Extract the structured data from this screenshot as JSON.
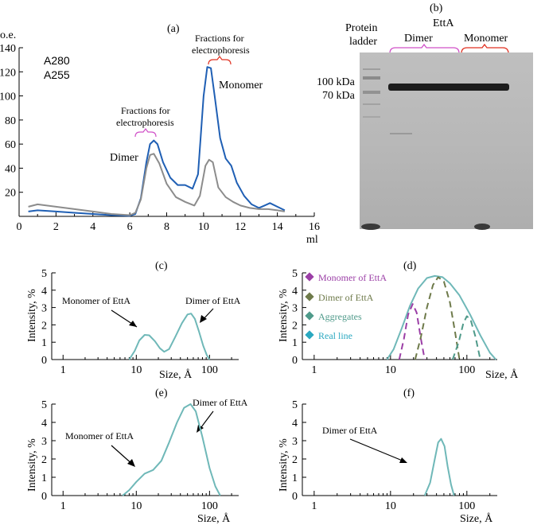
{
  "colors": {
    "a280": "#1f5fb4",
    "a255": "#8c8c8c",
    "dls": "#6fb8b8",
    "monomer": "#9b3fa6",
    "dimer": "#6e7a4a",
    "aggregates": "#4f9a8a",
    "real": "#2aa8c0",
    "bracket_dimer": "#d050c8",
    "bracket_monomer": "#e03020"
  },
  "panel_a": {
    "label": "(a)",
    "yunit": "o.e.",
    "xunit": "ml",
    "ann_dimer": "Dimer",
    "ann_monomer": "Monomer",
    "ann_fractions_left": [
      "Fractions for",
      "electrophoresis"
    ],
    "ann_fractions_right": [
      "Fractions for",
      "electrophoresis"
    ]
  },
  "panel_b": {
    "label": "(b)",
    "protein_ladder": [
      "Protein",
      "ladder"
    ],
    "ettA": "EttA",
    "dimer": "Dimer",
    "monomer": "Monomer",
    "kda_100": "100 kDa",
    "kda_70": "70 kDa"
  },
  "dls": {
    "ylabel": "Intensity, %",
    "xlabel": "Size, Å",
    "panel_c": {
      "label": "(c)",
      "ann_monomer": "Monomer of EttA",
      "ann_dimer": "Dimer of EttA"
    },
    "panel_d": {
      "label": "(d)",
      "legend": [
        "Monomer of EttA",
        "Dimer of EttA",
        "Aggregates",
        "Real line"
      ]
    },
    "panel_e": {
      "label": "(e)",
      "ann_monomer": "Monomer of EttA",
      "ann_dimer": "Dimer of EttA"
    },
    "panel_f": {
      "label": "(f)",
      "ann_dimer": "Dimer of EttA"
    }
  },
  "chart_data": [
    {
      "type": "line",
      "panel": "a",
      "xlabel": "ml",
      "ylabel": "o.e.",
      "xlim": [
        0,
        16
      ],
      "ylim": [
        0,
        140
      ],
      "xticks": [
        0,
        2,
        4,
        6,
        8,
        10,
        12,
        14,
        16
      ],
      "yticks": [
        20,
        40,
        60,
        80,
        100,
        120,
        140
      ],
      "series": [
        {
          "name": "A280",
          "points": [
            [
              0.5,
              4
            ],
            [
              1,
              5
            ],
            [
              2,
              4
            ],
            [
              3,
              3
            ],
            [
              4,
              2
            ],
            [
              5,
              1
            ],
            [
              6,
              0.5
            ],
            [
              6.3,
              2
            ],
            [
              6.6,
              15
            ],
            [
              6.9,
              45
            ],
            [
              7.1,
              60
            ],
            [
              7.3,
              63
            ],
            [
              7.5,
              60
            ],
            [
              7.8,
              45
            ],
            [
              8.2,
              32
            ],
            [
              8.6,
              26
            ],
            [
              9.0,
              26
            ],
            [
              9.4,
              23
            ],
            [
              9.7,
              35
            ],
            [
              10.0,
              100
            ],
            [
              10.2,
              124
            ],
            [
              10.4,
              123
            ],
            [
              10.6,
              100
            ],
            [
              10.9,
              65
            ],
            [
              11.2,
              48
            ],
            [
              11.5,
              42
            ],
            [
              11.8,
              28
            ],
            [
              12.2,
              17
            ],
            [
              12.6,
              10
            ],
            [
              13.0,
              7
            ],
            [
              13.3,
              9
            ],
            [
              13.6,
              11
            ],
            [
              14.0,
              8
            ],
            [
              14.4,
              5
            ]
          ]
        },
        {
          "name": "A255",
          "points": [
            [
              0.5,
              8
            ],
            [
              1,
              10
            ],
            [
              2,
              8
            ],
            [
              3,
              6
            ],
            [
              4,
              4
            ],
            [
              5,
              2
            ],
            [
              6,
              1
            ],
            [
              6.3,
              3
            ],
            [
              6.6,
              14
            ],
            [
              6.9,
              40
            ],
            [
              7.1,
              51
            ],
            [
              7.3,
              52
            ],
            [
              7.6,
              44
            ],
            [
              8.0,
              27
            ],
            [
              8.5,
              16
            ],
            [
              9.0,
              12
            ],
            [
              9.5,
              9
            ],
            [
              9.8,
              17
            ],
            [
              10.1,
              42
            ],
            [
              10.3,
              47
            ],
            [
              10.5,
              45
            ],
            [
              10.8,
              24
            ],
            [
              11.2,
              16
            ],
            [
              11.6,
              12
            ],
            [
              12.0,
              9
            ],
            [
              12.5,
              7
            ],
            [
              13.0,
              6
            ],
            [
              13.5,
              6
            ],
            [
              14.0,
              5
            ],
            [
              14.4,
              4
            ]
          ]
        }
      ]
    },
    {
      "type": "line",
      "panel": "c",
      "xscale": "log",
      "xlim": [
        0.7,
        250
      ],
      "ylim": [
        0,
        5
      ],
      "xticks": [
        1,
        10,
        100
      ],
      "yticks": [
        0,
        1,
        2,
        3,
        4,
        5
      ],
      "series": [
        {
          "points": [
            [
              8,
              0
            ],
            [
              9.5,
              0.5
            ],
            [
              11,
              1.1
            ],
            [
              13,
              1.42
            ],
            [
              15,
              1.4
            ],
            [
              18,
              1.05
            ],
            [
              21,
              0.65
            ],
            [
              24,
              0.45
            ],
            [
              28,
              0.6
            ],
            [
              34,
              1.3
            ],
            [
              42,
              2.1
            ],
            [
              50,
              2.6
            ],
            [
              56,
              2.65
            ],
            [
              63,
              2.35
            ],
            [
              72,
              1.6
            ],
            [
              82,
              0.8
            ],
            [
              92,
              0.25
            ],
            [
              100,
              0
            ]
          ]
        }
      ]
    },
    {
      "type": "line",
      "panel": "d",
      "xscale": "log",
      "xlim": [
        0.7,
        250
      ],
      "ylim": [
        0,
        5
      ],
      "xticks": [
        1,
        10,
        100
      ],
      "yticks": [
        0,
        1,
        2,
        3,
        4,
        5
      ],
      "series": [
        {
          "name": "Real line",
          "points": [
            [
              9,
              0
            ],
            [
              11,
              0.6
            ],
            [
              14,
              1.8
            ],
            [
              18,
              3.1
            ],
            [
              23,
              4.1
            ],
            [
              30,
              4.7
            ],
            [
              38,
              4.82
            ],
            [
              48,
              4.75
            ],
            [
              60,
              4.4
            ],
            [
              80,
              3.7
            ],
            [
              110,
              2.6
            ],
            [
              150,
              1.4
            ],
            [
              200,
              0.4
            ],
            [
              240,
              0
            ]
          ]
        },
        {
          "name": "Monomer of EttA",
          "dashed": true,
          "points": [
            [
              13,
              0
            ],
            [
              15,
              1.2
            ],
            [
              17,
              2.6
            ],
            [
              19.5,
              3.2
            ],
            [
              22,
              2.7
            ],
            [
              25,
              1.2
            ],
            [
              28,
              0
            ]
          ]
        },
        {
          "name": "Dimer of EttA",
          "dashed": true,
          "points": [
            [
              21,
              0
            ],
            [
              25,
              1.3
            ],
            [
              30,
              3.0
            ],
            [
              36,
              4.3
            ],
            [
              42,
              4.75
            ],
            [
              50,
              4.5
            ],
            [
              60,
              3.3
            ],
            [
              70,
              1.6
            ],
            [
              80,
              0
            ]
          ]
        },
        {
          "name": "Aggregates",
          "dashed": true,
          "points": [
            [
              65,
              0
            ],
            [
              78,
              1.0
            ],
            [
              90,
              2.1
            ],
            [
              100,
              2.5
            ],
            [
              112,
              2.3
            ],
            [
              130,
              1.3
            ],
            [
              150,
              0
            ]
          ]
        }
      ]
    },
    {
      "type": "line",
      "panel": "e",
      "xscale": "log",
      "xlim": [
        0.7,
        250
      ],
      "ylim": [
        0,
        5
      ],
      "xticks": [
        1,
        10,
        100
      ],
      "yticks": [
        0,
        1,
        2,
        3,
        4,
        5
      ],
      "series": [
        {
          "points": [
            [
              6.5,
              0
            ],
            [
              8,
              0.3
            ],
            [
              10,
              0.75
            ],
            [
              13,
              1.2
            ],
            [
              17,
              1.4
            ],
            [
              22,
              1.9
            ],
            [
              28,
              2.9
            ],
            [
              36,
              4.0
            ],
            [
              45,
              4.8
            ],
            [
              55,
              5.0
            ],
            [
              65,
              4.6
            ],
            [
              80,
              3.2
            ],
            [
              100,
              1.5
            ],
            [
              120,
              0.5
            ],
            [
              140,
              0
            ]
          ]
        }
      ]
    },
    {
      "type": "line",
      "panel": "f",
      "xscale": "log",
      "xlim": [
        0.7,
        250
      ],
      "ylim": [
        0,
        5
      ],
      "xticks": [
        1,
        10,
        100
      ],
      "yticks": [
        0,
        1,
        2,
        3,
        4,
        5
      ],
      "series": [
        {
          "points": [
            [
              28,
              0
            ],
            [
              33,
              0.7
            ],
            [
              38,
              2.0
            ],
            [
              42,
              2.9
            ],
            [
              46,
              3.1
            ],
            [
              51,
              2.7
            ],
            [
              56,
              1.6
            ],
            [
              62,
              0.6
            ],
            [
              68,
              0
            ]
          ]
        }
      ]
    }
  ]
}
